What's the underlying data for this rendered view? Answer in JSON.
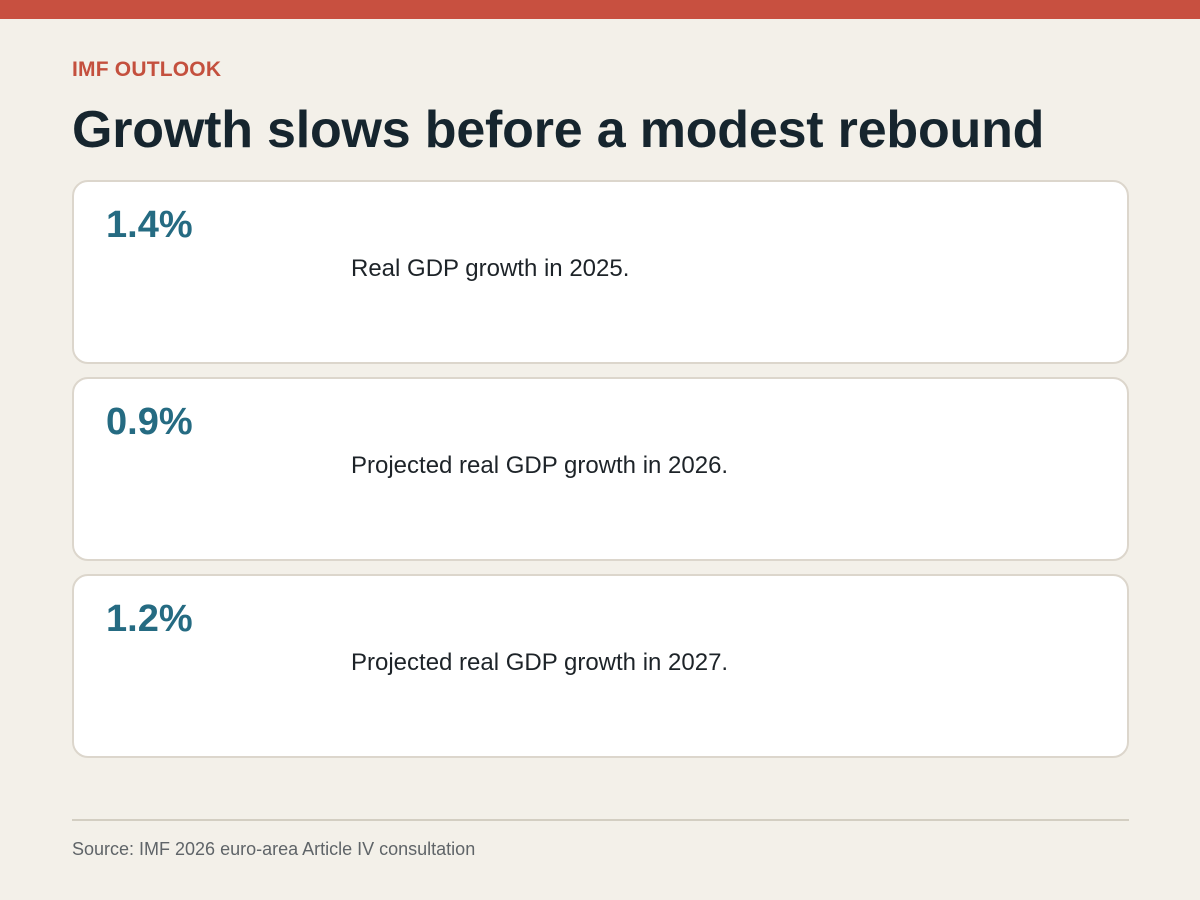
{
  "header": {
    "eyebrow": "IMF OUTLOOK",
    "title": "Growth slows before a modest rebound"
  },
  "cards": [
    {
      "value": "1.4%",
      "description": "Real GDP growth in 2025."
    },
    {
      "value": "0.9%",
      "description": "Projected real GDP growth in 2026."
    },
    {
      "value": "1.2%",
      "description": "Projected real GDP growth in 2027."
    }
  ],
  "footer": {
    "source": "Source: IMF 2026 euro-area Article IV consultation"
  },
  "colors": {
    "accent_bar": "#c85040",
    "eyebrow": "#c4503e",
    "value": "#256b82",
    "background": "#f3f0e9"
  }
}
